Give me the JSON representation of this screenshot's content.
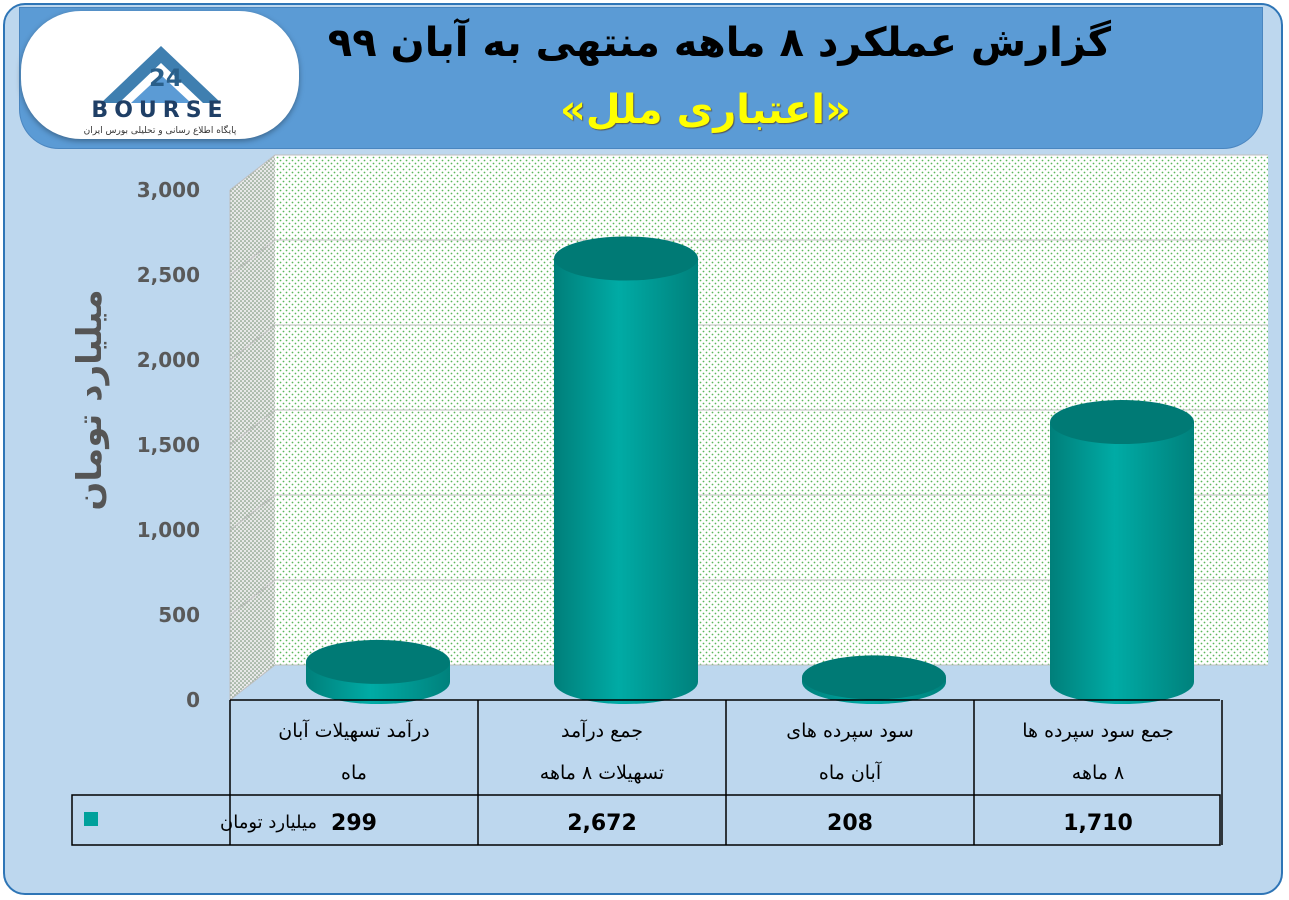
{
  "header": {
    "title": "گزارش عملکرد ۸ ماهه منتهی به آبان ۹۹",
    "subtitle": "«اعتباری ملل»",
    "logo": {
      "brand": "BOURSE",
      "number": "24",
      "tagline": "پایگاه اطلاع رسانی و تحلیلی بورس ایران"
    }
  },
  "chart_data": {
    "type": "bar",
    "style": "3d-cylinder",
    "ylabel": "میلیارد تومان",
    "ylim": [
      0,
      3000
    ],
    "yticks": [
      "0",
      "500",
      "1,000",
      "1,500",
      "2,000",
      "2,500",
      "3,000"
    ],
    "categories": [
      [
        "درآمد تسهیلات آبان",
        "ماه"
      ],
      [
        "جمع درآمد",
        "تسهیلات ۸ ماهه"
      ],
      [
        "سود سپرده های",
        "آبان ماه"
      ],
      [
        "جمع سود سپرده ها",
        "۸ ماهه"
      ]
    ],
    "series": [
      {
        "name": "میلیارد تومان",
        "values": [
          299,
          2672,
          208,
          1710
        ],
        "labels": [
          "299",
          "2,672",
          "208",
          "1,710"
        ],
        "color": "#00a19c"
      }
    ],
    "grid": true,
    "data_table": true
  }
}
